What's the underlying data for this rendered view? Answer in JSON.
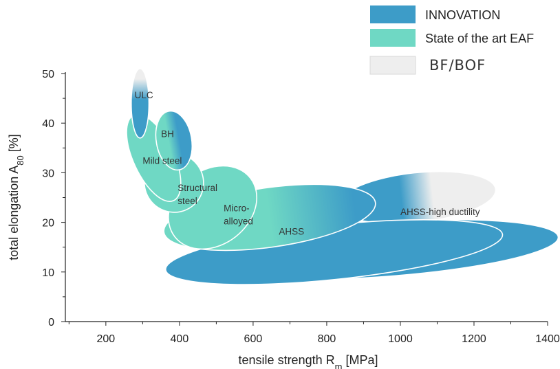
{
  "colors": {
    "innovation": "#3d9cc8",
    "eaf": "#6fd8c4",
    "bfbof": "#eeeeee",
    "outline": "#ffffff",
    "axis": "#222222"
  },
  "chart_data": {
    "type": "area",
    "title": "",
    "xlabel": "tensile strength",
    "xlabel_symbol": "R",
    "xlabel_subscript": "m",
    "xlabel_unit": "[MPa]",
    "ylabel": "total elongation",
    "ylabel_symbol": "A",
    "ylabel_subscript": "80",
    "ylabel_unit": "[%]",
    "xlim": [
      90,
      1400
    ],
    "ylim": [
      0,
      50
    ],
    "x_ticks": [
      200,
      400,
      600,
      800,
      1000,
      1200,
      1400
    ],
    "y_ticks": [
      0,
      10,
      20,
      30,
      40,
      50
    ],
    "grid": false,
    "legend_position": "top-right",
    "legend": [
      {
        "name": "INNOVATION",
        "key": "innovation"
      },
      {
        "name": "State of the art EAF",
        "key": "eaf"
      },
      {
        "name": "BF/BOF",
        "key": "bfbof"
      }
    ],
    "regions": [
      {
        "label": "AHSS-high ductility",
        "cx": 1045,
        "cy": 25,
        "rx": 215,
        "ry": 5,
        "angle": -6,
        "fill": "gradient",
        "stops": [
          [
            "innovation",
            0
          ],
          [
            "innovation",
            0.4
          ],
          [
            "bfbof",
            0.6
          ],
          [
            "bfbof",
            1
          ]
        ],
        "label_x": 1000,
        "label_y": 21.5
      },
      {
        "label": "AHSS",
        "cx": 940,
        "cy": 14.5,
        "rx": 490,
        "ry": 5.5,
        "angle": -4,
        "fill": "innovation",
        "label_x": 670,
        "label_y": 17.5
      },
      {
        "label": "",
        "cx": 820,
        "cy": 14,
        "rx": 460,
        "ry": 5.5,
        "angle": -6,
        "fill": "innovation"
      },
      {
        "label": "",
        "cx": 645,
        "cy": 21,
        "rx": 290,
        "ry": 6,
        "angle": -8,
        "fill": "gradient",
        "stops": [
          [
            "eaf",
            0
          ],
          [
            "eaf",
            0.5
          ],
          [
            "innovation",
            0.9
          ],
          [
            "innovation",
            1
          ]
        ]
      },
      {
        "label": "Micro-\nalloyed",
        "cx": 490,
        "cy": 23,
        "rx": 130,
        "ry": 7.5,
        "angle": -38,
        "fill": "eaf",
        "label_x": 520,
        "label_y": 22.2
      },
      {
        "label": "Structural\nsteel",
        "cx": 385,
        "cy": 28,
        "rx": 80,
        "ry": 6,
        "angle": -42,
        "fill": "eaf",
        "label_x": 395,
        "label_y": 26.3
      },
      {
        "label": "Mild steel",
        "cx": 330,
        "cy": 33,
        "rx": 55,
        "ry": 9.5,
        "angle": -25,
        "fill": "eaf",
        "label_x": 300,
        "label_y": 31.8
      },
      {
        "label": "BH",
        "cx": 385,
        "cy": 36.5,
        "rx": 48,
        "ry": 6,
        "angle": -10,
        "fill": "gradient",
        "stops": [
          [
            "eaf",
            0
          ],
          [
            "eaf",
            0.35
          ],
          [
            "innovation",
            0.65
          ],
          [
            "innovation",
            1
          ]
        ],
        "label_x": 350,
        "label_y": 37.2
      },
      {
        "label": "ULC",
        "cx": 293,
        "cy": 44,
        "rx": 24,
        "ry": 7,
        "angle": 0,
        "fill": "vgradient",
        "stops": [
          [
            "bfbof",
            0
          ],
          [
            "bfbof",
            0.15
          ],
          [
            "innovation",
            0.45
          ],
          [
            "innovation",
            1
          ]
        ],
        "label_x": 278,
        "label_y": 45
      }
    ]
  }
}
